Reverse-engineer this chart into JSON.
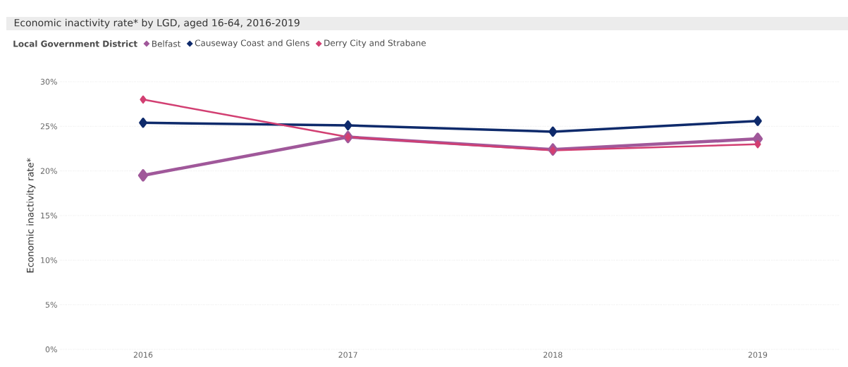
{
  "chart_data": {
    "type": "line",
    "title": "Economic inactivity rate* by LGD, aged 16-64, 2016-2019",
    "ylabel": "Economic inactivity rate*",
    "legend_title": "Local Government District",
    "categories": [
      "2016",
      "2017",
      "2018",
      "2019"
    ],
    "series": [
      {
        "name": "Belfast",
        "color": "#a0589a",
        "values": [
          19.5,
          23.8,
          22.4,
          23.6
        ]
      },
      {
        "name": "Causeway Coast and Glens",
        "color": "#0e2a6b",
        "values": [
          25.4,
          25.1,
          24.4,
          25.6
        ]
      },
      {
        "name": "Derry City and Strabane",
        "color": "#d23f72",
        "values": [
          28.0,
          23.8,
          22.3,
          23.0
        ]
      }
    ],
    "ylim": [
      0,
      30
    ],
    "yticks": [
      {
        "value": 0,
        "label": "0%"
      },
      {
        "value": 5,
        "label": "5%"
      },
      {
        "value": 10,
        "label": "10%"
      },
      {
        "value": 15,
        "label": "15%"
      },
      {
        "value": 20,
        "label": "20%"
      },
      {
        "value": 25,
        "label": "25%"
      },
      {
        "value": 30,
        "label": "30%"
      }
    ],
    "grid": "y",
    "legend": "top left",
    "marker": "diamond",
    "line_style": "solid"
  }
}
